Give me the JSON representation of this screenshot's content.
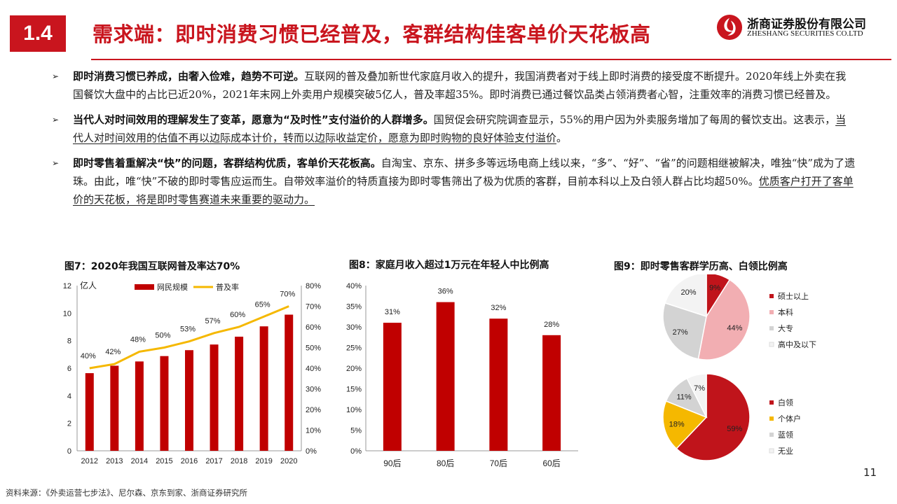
{
  "header": {
    "section_number": "1.4",
    "title": "需求端：即时消费习惯已经普及，客群结构佳客单价天花板高",
    "company_cn": "浙商证券股份有限公司",
    "company_en": "ZHESHANG SECURITIES CO.LTD"
  },
  "bullets": [
    {
      "lead": "即时消费习惯已养成，由奢入俭难，趋势不可逆。",
      "body": "互联网的普及叠加新世代家庭月收入的提升，我国消费者对于线上即时消费的接受度不断提升。2020年线上外卖在我国餐饮大盘中的占比已近20%，2021年末网上外卖用户规模突破5亿人，普及率超35%。即时消费已通过餐饮品类占领消费者心智，注重效率的消费习惯已经普及。",
      "underlined": ""
    },
    {
      "lead": "当代人对时间效用的理解发生了变革，愿意为“及时性”支付溢价的人群增多。",
      "body": "国贸促会研究院调查显示，55%的用户因为外卖服务增加了每周的餐饮支出。这表示，",
      "underlined": "当代人对时间效用的估值不再以边际成本计价，转而以边际收益定价，愿意为即时购物的良好体验支付溢价",
      "tail": "。"
    },
    {
      "lead": "即时零售着重解决“快”的问题，客群结构优质，客单价天花板高。",
      "body": "自淘宝、京东、拼多多等远场电商上线以来，“多”、“好”、“省”的问题相继被解决，唯独“快”成为了遗珠。由此，唯“快”不破的即时零售应运而生。自带效率溢价的特质直接为即时零售筛出了极为优质的客群，目前本科以上及白领人群占比均超50%。",
      "underlined": "优质客户打开了客单价的天花板，将是即时零售赛道未来重要的驱动力。",
      "tail": ""
    }
  ],
  "fig7": {
    "title": "图7：2020年我国互联网普及率达70%",
    "unit_label": "亿人",
    "left_ticks": [
      "0",
      "2",
      "4",
      "6",
      "8",
      "10",
      "12"
    ],
    "right_ticks": [
      "0%",
      "10%",
      "20%",
      "30%",
      "40%",
      "50%",
      "60%",
      "70%",
      "80%"
    ]
  },
  "fig8": {
    "title": "图8：家庭月收入超过1万元在年轻人中比例高",
    "ticks": [
      "0%",
      "5%",
      "10%",
      "15%",
      "20%",
      "25%",
      "30%",
      "35%",
      "40%"
    ]
  },
  "fig9": {
    "title": "图9：即时零售客群学历高、白领比例高"
  },
  "chart_data": [
    {
      "type": "bar",
      "title": "图7：2020年我国互联网普及率达70%",
      "categories": [
        "2012",
        "2013",
        "2014",
        "2015",
        "2016",
        "2017",
        "2018",
        "2019",
        "2020"
      ],
      "ylabel": "亿人",
      "ylim": [
        0,
        12
      ],
      "y2lim": [
        0,
        80
      ],
      "legend": "top",
      "series": [
        {
          "name": "网民规模",
          "type": "bar",
          "color": "#c00000",
          "values": [
            5.64,
            6.18,
            6.49,
            6.88,
            7.31,
            7.72,
            8.29,
            9.04,
            9.89
          ]
        },
        {
          "name": "普及率",
          "type": "line",
          "axis": "right",
          "color": "#f5b800",
          "values": [
            40,
            42,
            48,
            50,
            53,
            57,
            60,
            65,
            70
          ],
          "labels": [
            "40%",
            "42%",
            "48%",
            "50%",
            "53%",
            "57%",
            "60%",
            "65%",
            "70%"
          ]
        }
      ]
    },
    {
      "type": "bar",
      "title": "图8：家庭月收入超过1万元在年轻人中比例高",
      "categories": [
        "90后",
        "80后",
        "70后",
        "60后"
      ],
      "values": [
        31,
        36,
        32,
        28
      ],
      "labels": [
        "31%",
        "36%",
        "32%",
        "28%"
      ],
      "ylim": [
        0,
        40
      ],
      "color": "#c00000"
    },
    {
      "type": "pie",
      "title": "图9：即时零售客群学历高、白领比例高",
      "slices": [
        {
          "name": "硕士以上",
          "value": 9,
          "label": "9%",
          "color": "#c0141b"
        },
        {
          "name": "本科",
          "value": 44,
          "label": "44%",
          "color": "#f2aeb2"
        },
        {
          "name": "大专",
          "value": 27,
          "label": "27%",
          "color": "#d3d3d3"
        },
        {
          "name": "高中及以下",
          "value": 20,
          "label": "20%",
          "color": "#f3f3f3"
        }
      ],
      "legend": "right"
    },
    {
      "type": "pie",
      "slices": [
        {
          "name": "白领",
          "value": 59,
          "label": "59%",
          "color": "#c0141b"
        },
        {
          "name": "个体户",
          "value": 18,
          "label": "18%",
          "color": "#f5b800"
        },
        {
          "name": "蓝领",
          "value": 11,
          "label": "11%",
          "color": "#d3d3d3"
        },
        {
          "name": "无业",
          "value": 7,
          "label": "7%",
          "color": "#f3f3f3"
        }
      ],
      "legend": "right"
    }
  ],
  "footer": {
    "source": "资料来源：《外卖运营七步法》、尼尔森、京东到家、浙商证券研究所",
    "page_number": "11"
  }
}
